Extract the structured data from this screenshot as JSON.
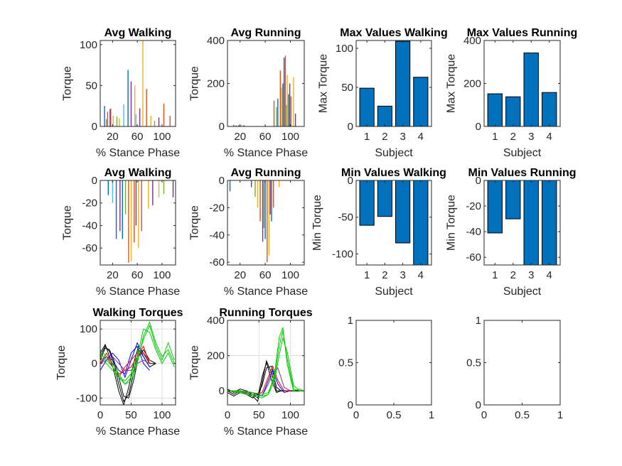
{
  "figure": {
    "background": "#ffffff",
    "axis_color": "#262626",
    "bar_color": "#0072BD"
  },
  "chart_data": [
    {
      "id": "p1",
      "type": "bar",
      "title": "Avg Walking",
      "xlabel": "% Stance Phase",
      "ylabel": "Torque",
      "xlim": [
        0,
        122
      ],
      "ylim": [
        0,
        105
      ],
      "xticks": [
        20,
        60,
        100
      ],
      "yticks": [
        0,
        50,
        100
      ],
      "series": [
        {
          "color": "#0072BD",
          "x": [
            7,
            45
          ],
          "values": [
            25,
            69
          ]
        },
        {
          "color": "#D95319",
          "x": [
            12,
            17,
            75,
            103,
            113
          ],
          "values": [
            18,
            22,
            46,
            28,
            13
          ]
        },
        {
          "color": "#EDB120",
          "x": [
            21,
            31,
            56,
            69,
            82
          ],
          "values": [
            13,
            10,
            50,
            105,
            13
          ]
        },
        {
          "color": "#7E2F8E",
          "x": [
            16,
            50,
            64,
            95
          ],
          "values": [
            21,
            55,
            22,
            11
          ]
        },
        {
          "color": "#77AC30",
          "x": [
            10,
            27,
            88
          ],
          "values": [
            9,
            12,
            7
          ]
        },
        {
          "color": "#4DBEEE",
          "x": [
            38,
            58
          ],
          "values": [
            27,
            15
          ]
        }
      ]
    },
    {
      "id": "p2",
      "type": "bar",
      "title": "Avg Running",
      "xlabel": "% Stance Phase",
      "ylabel": "Torque",
      "xlim": [
        0,
        122
      ],
      "ylim": [
        0,
        400
      ],
      "xticks": [
        20,
        60,
        100
      ],
      "yticks": [
        0,
        200,
        400
      ],
      "series": [
        {
          "color": "#0072BD",
          "x": [
            10,
            18,
            80,
            88,
            97
          ],
          "values": [
            8,
            6,
            130,
            200,
            150
          ]
        },
        {
          "color": "#D95319",
          "x": [
            14,
            74,
            84,
            92,
            101
          ],
          "values": [
            5,
            120,
            260,
            330,
            140
          ]
        },
        {
          "color": "#EDB120",
          "x": [
            22,
            86,
            95,
            105
          ],
          "values": [
            7,
            180,
            240,
            230
          ]
        },
        {
          "color": "#7E2F8E",
          "x": [
            26,
            90,
            99,
            108
          ],
          "values": [
            6,
            320,
            200,
            60
          ]
        },
        {
          "color": "#77AC30",
          "x": [
            78,
            94
          ],
          "values": [
            90,
            100
          ]
        }
      ]
    },
    {
      "id": "p3",
      "type": "bar",
      "title": "Max Values Walking",
      "xlabel": "Subject",
      "ylabel": "Max Torque",
      "categories": [
        "1",
        "2",
        "3",
        "4"
      ],
      "values": [
        49,
        26,
        109,
        63
      ],
      "ylim": [
        0,
        110
      ],
      "yticks": [
        0,
        50,
        100
      ]
    },
    {
      "id": "p4",
      "type": "bar",
      "title": "Max Values Running",
      "xlabel": "Subject",
      "ylabel": "Max Torque",
      "categories": [
        "1",
        "2",
        "3",
        "4"
      ],
      "values": [
        152,
        138,
        342,
        158
      ],
      "ylim": [
        0,
        400
      ],
      "yticks": [
        0,
        200,
        400
      ]
    },
    {
      "id": "p5",
      "type": "bar",
      "title": "Avg Walking",
      "xlabel": "% Stance Phase",
      "ylabel": "Torque",
      "xlim": [
        0,
        122
      ],
      "ylim": [
        -75,
        0
      ],
      "xticks": [
        20,
        60,
        100
      ],
      "yticks": [
        0,
        -20,
        -40,
        -60
      ],
      "series": [
        {
          "color": "#0072BD",
          "x": [
            13,
            26,
            36
          ],
          "values": [
            -13,
            -52,
            -52
          ]
        },
        {
          "color": "#D95319",
          "x": [
            46,
            55,
            67
          ],
          "values": [
            -73,
            -55,
            -45
          ]
        },
        {
          "color": "#EDB120",
          "x": [
            50,
            62,
            78,
            95
          ],
          "values": [
            -72,
            -60,
            -25,
            -15
          ]
        },
        {
          "color": "#7E2F8E",
          "x": [
            32,
            58,
            85,
            118
          ],
          "values": [
            -45,
            -40,
            -22,
            -15
          ]
        },
        {
          "color": "#77AC30",
          "x": [
            41,
            103
          ],
          "values": [
            -30,
            -12
          ]
        },
        {
          "color": "#4DBEEE",
          "x": [
            20
          ],
          "values": [
            -20
          ]
        }
      ]
    },
    {
      "id": "p6",
      "type": "bar",
      "title": "Avg Running",
      "xlabel": "% Stance Phase",
      "ylabel": "Torque",
      "xlim": [
        0,
        122
      ],
      "ylim": [
        -62,
        0
      ],
      "xticks": [
        20,
        60,
        100
      ],
      "yticks": [
        0,
        -20,
        -40,
        -60
      ],
      "series": [
        {
          "color": "#0072BD",
          "x": [
            4,
            60,
            70
          ],
          "values": [
            -8,
            -43,
            -30
          ]
        },
        {
          "color": "#D95319",
          "x": [
            52,
            63,
            73
          ],
          "values": [
            -30,
            -60,
            -20
          ]
        },
        {
          "color": "#EDB120",
          "x": [
            48,
            66,
            82
          ],
          "values": [
            -20,
            -55,
            -5
          ]
        },
        {
          "color": "#7E2F8E",
          "x": [
            38,
            56,
            68
          ],
          "values": [
            -5,
            -45,
            -25
          ]
        },
        {
          "color": "#77AC30",
          "x": [
            44,
            58
          ],
          "values": [
            -12,
            -35
          ]
        }
      ]
    },
    {
      "id": "p7",
      "type": "bar",
      "title": "Min Values Walking",
      "xlabel": "Subject",
      "ylabel": "Min Torque",
      "categories": [
        "1",
        "2",
        "3",
        "4"
      ],
      "values": [
        -61,
        -49,
        -85,
        -115
      ],
      "ylim": [
        -115,
        0
      ],
      "yticks": [
        0,
        -50,
        -100
      ]
    },
    {
      "id": "p8",
      "type": "bar",
      "title": "Min Values Running",
      "xlabel": "Subject",
      "ylabel": "Min Torque",
      "categories": [
        "1",
        "2",
        "3",
        "4"
      ],
      "values": [
        -41,
        -30,
        -66,
        -66
      ],
      "ylim": [
        -66,
        0
      ],
      "yticks": [
        0,
        -20,
        -40,
        -60
      ]
    },
    {
      "id": "p9",
      "type": "line",
      "title": "Walking Torques",
      "xlabel": "% Stance Phase",
      "ylabel": "Torque",
      "xlim": [
        0,
        122
      ],
      "ylim": [
        -120,
        125
      ],
      "xticks": [
        0,
        50,
        100
      ],
      "yticks": [
        -100,
        0,
        100
      ],
      "grid": true,
      "series": [
        {
          "color": "#000000",
          "x": [
            0,
            8,
            15,
            22,
            30,
            38,
            46,
            54,
            62,
            70,
            80,
            90
          ],
          "y": [
            20,
            50,
            35,
            0,
            -60,
            -110,
            -90,
            -30,
            40,
            20,
            -10,
            0
          ]
        },
        {
          "color": "#000000",
          "x": [
            0,
            8,
            15,
            22,
            30,
            38,
            46,
            54,
            62,
            70,
            80,
            90
          ],
          "y": [
            30,
            55,
            20,
            -20,
            -80,
            -120,
            -70,
            0,
            50,
            30,
            0,
            0
          ]
        },
        {
          "color": "#000000",
          "x": [
            0,
            8,
            15,
            22,
            30,
            38,
            46,
            54,
            62,
            70,
            80,
            90
          ],
          "y": [
            10,
            45,
            40,
            10,
            -40,
            -95,
            -100,
            -50,
            20,
            40,
            10,
            0
          ]
        },
        {
          "color": "#0000FF",
          "x": [
            0,
            10,
            20,
            30,
            40,
            50,
            60,
            70,
            80
          ],
          "y": [
            -20,
            10,
            30,
            10,
            -40,
            10,
            60,
            20,
            -10
          ]
        },
        {
          "color": "#0000FF",
          "x": [
            0,
            10,
            20,
            30,
            40,
            50,
            60,
            70,
            80
          ],
          "y": [
            0,
            20,
            10,
            -20,
            -30,
            30,
            50,
            0,
            -20
          ]
        },
        {
          "color": "#FF0000",
          "x": [
            0,
            10,
            20,
            30,
            40,
            50,
            60,
            70,
            80
          ],
          "y": [
            0,
            30,
            0,
            -30,
            -20,
            -10,
            20,
            50,
            0
          ]
        },
        {
          "color": "#FF0000",
          "x": [
            0,
            10,
            20,
            30,
            40,
            50,
            60,
            70,
            80
          ],
          "y": [
            10,
            20,
            -10,
            -40,
            -10,
            10,
            30,
            30,
            10
          ]
        },
        {
          "color": "#7E2F8E",
          "x": [
            0,
            10,
            20,
            30,
            40,
            50,
            60,
            70,
            80
          ],
          "y": [
            0,
            10,
            20,
            0,
            -20,
            -20,
            0,
            10,
            0
          ]
        },
        {
          "color": "#00CC00",
          "x": [
            0,
            10,
            20,
            30,
            40,
            50,
            60,
            70,
            80,
            90,
            100,
            110,
            120
          ],
          "y": [
            40,
            20,
            0,
            -30,
            -60,
            -50,
            0,
            80,
            120,
            60,
            20,
            40,
            0
          ]
        },
        {
          "color": "#00CC00",
          "x": [
            0,
            10,
            20,
            30,
            40,
            50,
            60,
            70,
            80,
            90,
            100,
            110,
            120
          ],
          "y": [
            20,
            0,
            -20,
            -40,
            -50,
            -30,
            20,
            100,
            90,
            40,
            0,
            30,
            -10
          ]
        },
        {
          "color": "#00CC00",
          "x": [
            0,
            10,
            20,
            30,
            40,
            50,
            60,
            70,
            80,
            90,
            100,
            110,
            120
          ],
          "y": [
            30,
            10,
            -10,
            -40,
            -60,
            -40,
            10,
            70,
            110,
            50,
            10,
            60,
            10
          ]
        }
      ]
    },
    {
      "id": "p10",
      "type": "line",
      "title": "Running Torques",
      "xlabel": "% Stance Phase",
      "ylabel": "Torque",
      "xlim": [
        0,
        122
      ],
      "ylim": [
        -80,
        400
      ],
      "xticks": [
        0,
        50,
        100
      ],
      "yticks": [
        0,
        200,
        400
      ],
      "grid": true,
      "series": [
        {
          "color": "#000000",
          "x": [
            0,
            10,
            20,
            30,
            40,
            48,
            55,
            62,
            70,
            78,
            85,
            100,
            120
          ],
          "y": [
            0,
            -20,
            0,
            -10,
            -30,
            -60,
            50,
            170,
            100,
            0,
            0,
            0,
            0
          ]
        },
        {
          "color": "#000000",
          "x": [
            0,
            10,
            20,
            30,
            40,
            48,
            55,
            62,
            70,
            78,
            85,
            100,
            120
          ],
          "y": [
            10,
            -10,
            10,
            0,
            -20,
            -40,
            80,
            160,
            60,
            -10,
            0,
            0,
            0
          ]
        },
        {
          "color": "#000000",
          "x": [
            0,
            10,
            20,
            30,
            40,
            48,
            55,
            62,
            70,
            78,
            85,
            100,
            120
          ],
          "y": [
            -10,
            -30,
            -10,
            -20,
            -40,
            -20,
            30,
            130,
            140,
            20,
            0,
            0,
            0
          ]
        },
        {
          "color": "#0000FF",
          "x": [
            0,
            20,
            40,
            55,
            65,
            72,
            80,
            90,
            100
          ],
          "y": [
            0,
            0,
            -10,
            -30,
            60,
            120,
            40,
            -10,
            0
          ]
        },
        {
          "color": "#FF0000",
          "x": [
            0,
            20,
            40,
            55,
            65,
            72,
            80,
            90,
            100
          ],
          "y": [
            0,
            0,
            -20,
            -10,
            80,
            140,
            60,
            0,
            0
          ]
        },
        {
          "color": "#7E2F8E",
          "x": [
            0,
            20,
            40,
            55,
            65,
            72,
            80,
            90,
            100
          ],
          "y": [
            0,
            -10,
            -20,
            -30,
            40,
            100,
            130,
            20,
            0
          ]
        },
        {
          "color": "#00CC00",
          "x": [
            0,
            20,
            40,
            55,
            65,
            75,
            82,
            88,
            95,
            105,
            115,
            120
          ],
          "y": [
            0,
            -5,
            -20,
            -30,
            -20,
            100,
            300,
            360,
            150,
            0,
            10,
            0
          ]
        },
        {
          "color": "#00CC00",
          "x": [
            0,
            20,
            40,
            55,
            65,
            75,
            82,
            88,
            95,
            105,
            115,
            120
          ],
          "y": [
            0,
            0,
            -10,
            -20,
            -10,
            80,
            250,
            340,
            180,
            10,
            0,
            0
          ]
        },
        {
          "color": "#00CC00",
          "x": [
            0,
            20,
            40,
            55,
            65,
            75,
            82,
            88,
            95,
            105,
            115,
            120
          ],
          "y": [
            0,
            -10,
            -30,
            -40,
            -20,
            60,
            200,
            300,
            220,
            30,
            0,
            0
          ]
        }
      ]
    },
    {
      "id": "p11",
      "type": "line",
      "title": "",
      "xlabel": "",
      "ylabel": "",
      "xlim": [
        0,
        1
      ],
      "ylim": [
        0,
        1
      ],
      "xticks": [
        0,
        0.5,
        1
      ],
      "yticks": [
        0,
        0.5,
        1
      ],
      "xticklabels": [
        "0",
        "0.5",
        "1"
      ],
      "yticklabels": [
        "0",
        "0.5",
        "1"
      ],
      "series": []
    },
    {
      "id": "p12",
      "type": "line",
      "title": "",
      "xlabel": "",
      "ylabel": "",
      "xlim": [
        0,
        1
      ],
      "ylim": [
        0,
        1
      ],
      "xticks": [
        0,
        0.5,
        1
      ],
      "yticks": [
        0,
        0.5,
        1
      ],
      "xticklabels": [
        "0",
        "0.5",
        "1"
      ],
      "yticklabels": [
        "0",
        "0.5",
        "1"
      ],
      "series": []
    }
  ]
}
